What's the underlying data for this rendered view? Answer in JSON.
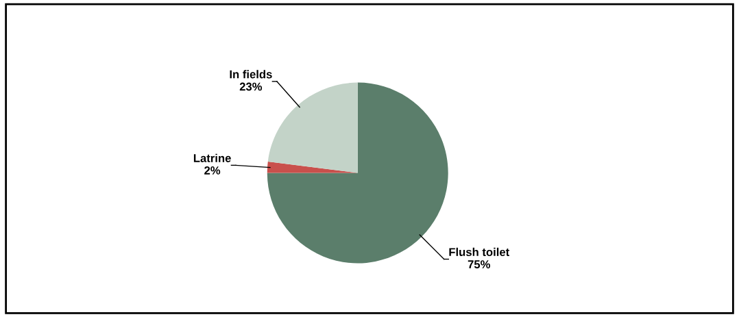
{
  "chart_data": {
    "type": "pie",
    "categories": [
      "Flush toilet",
      "Latrine",
      "In fields"
    ],
    "values": [
      75,
      2,
      23
    ],
    "value_labels": [
      "75%",
      "2%",
      "23%"
    ],
    "colors": [
      "#5b7e6b",
      "#c9504c",
      "#c3d3c8"
    ],
    "legend": false
  }
}
